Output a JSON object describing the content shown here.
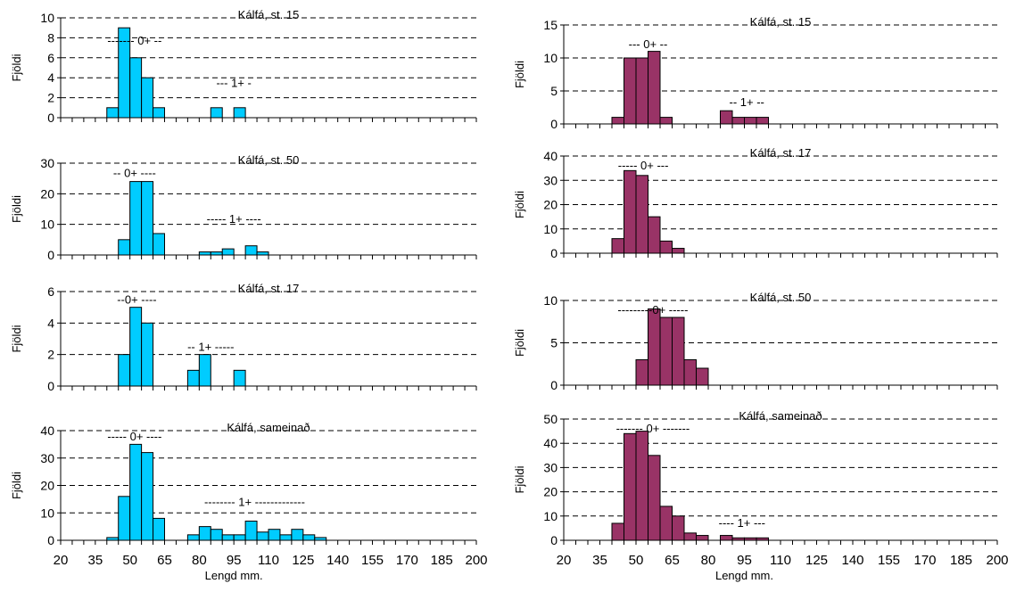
{
  "figure": {
    "x_axis_label": "Lengd mm.",
    "y_axis_label": "Fjöldi",
    "x_ticks": [
      "20",
      "35",
      "50",
      "65",
      "80",
      "95",
      "110",
      "125",
      "140",
      "155",
      "170",
      "185",
      "200"
    ]
  },
  "colors": {
    "left_bars": "#00CCFF",
    "right_bars": "#993366",
    "grid": "#000000"
  },
  "chart_data": [
    {
      "type": "bar",
      "title": "Kálfá, st. 15",
      "column": "left",
      "bin_width": 5,
      "x_range": [
        20,
        200
      ],
      "ylim": [
        0,
        10
      ],
      "yticks": [
        0,
        2,
        4,
        6,
        8,
        10
      ],
      "bins": [
        [
          40,
          1
        ],
        [
          45,
          9
        ],
        [
          50,
          6
        ],
        [
          55,
          4
        ],
        [
          60,
          1
        ],
        [
          85,
          1
        ],
        [
          95,
          1
        ]
      ],
      "annotations": [
        {
          "text": "------- 0+ --",
          "x": 52,
          "y": 7.3
        },
        {
          "text": "--- 1+ -",
          "x": 95,
          "y": 3.1
        }
      ]
    },
    {
      "type": "bar",
      "title": "Kálfá, st. 50",
      "column": "left",
      "bin_width": 5,
      "x_range": [
        20,
        200
      ],
      "ylim": [
        0,
        30
      ],
      "yticks": [
        0,
        10,
        20,
        30
      ],
      "bins": [
        [
          45,
          5
        ],
        [
          50,
          24
        ],
        [
          55,
          24
        ],
        [
          60,
          7
        ],
        [
          80,
          1
        ],
        [
          85,
          1
        ],
        [
          90,
          2
        ],
        [
          100,
          3
        ],
        [
          105,
          1
        ]
      ],
      "annotations": [
        {
          "text": "-- 0+ ----",
          "x": 52,
          "y": 25.5
        },
        {
          "text": "----- 1+ ----",
          "x": 95,
          "y": 10.5
        }
      ]
    },
    {
      "type": "bar",
      "title": "Kálfá, st. 17",
      "column": "left",
      "bin_width": 5,
      "x_range": [
        20,
        200
      ],
      "ylim": [
        0,
        6
      ],
      "yticks": [
        0,
        2,
        4,
        6
      ],
      "bins": [
        [
          45,
          2
        ],
        [
          50,
          5
        ],
        [
          55,
          4
        ],
        [
          75,
          1
        ],
        [
          80,
          2
        ],
        [
          95,
          1
        ]
      ],
      "annotations": [
        {
          "text": "--0+ ----",
          "x": 53,
          "y": 5.25
        },
        {
          "text": "-- 1+ -----",
          "x": 85,
          "y": 2.25
        }
      ]
    },
    {
      "type": "bar",
      "title": "Kálfá, sameinað",
      "column": "left",
      "bin_width": 5,
      "x_range": [
        20,
        200
      ],
      "ylim": [
        0,
        40
      ],
      "yticks": [
        0,
        10,
        20,
        30,
        40
      ],
      "bins": [
        [
          40,
          1
        ],
        [
          45,
          16
        ],
        [
          50,
          35
        ],
        [
          55,
          32
        ],
        [
          60,
          8
        ],
        [
          75,
          2
        ],
        [
          80,
          5
        ],
        [
          85,
          4
        ],
        [
          90,
          2
        ],
        [
          95,
          2
        ],
        [
          100,
          7
        ],
        [
          105,
          3
        ],
        [
          110,
          4
        ],
        [
          115,
          2
        ],
        [
          120,
          4
        ],
        [
          125,
          2
        ],
        [
          130,
          1
        ]
      ],
      "annotations": [
        {
          "text": "----- 0+ ----",
          "x": 52,
          "y": 36.5
        },
        {
          "text": "-------- 1+ -------------",
          "x": 104,
          "y": 12.5
        }
      ]
    },
    {
      "type": "bar",
      "title": "Kálfá, st. 15",
      "column": "right",
      "bin_width": 5,
      "x_range": [
        20,
        200
      ],
      "ylim": [
        0,
        15
      ],
      "yticks": [
        0,
        5,
        10,
        15
      ],
      "bins": [
        [
          40,
          1
        ],
        [
          45,
          10
        ],
        [
          50,
          10
        ],
        [
          55,
          11
        ],
        [
          60,
          1
        ],
        [
          85,
          2
        ],
        [
          90,
          1
        ],
        [
          95,
          1
        ],
        [
          100,
          1
        ]
      ],
      "annotations": [
        {
          "text": "--- 0+ --",
          "x": 55,
          "y": 11.5
        },
        {
          "text": "-- 1+ --",
          "x": 96,
          "y": 2.7
        }
      ]
    },
    {
      "type": "bar",
      "title": "Kálfá, st. 17",
      "column": "right",
      "bin_width": 5,
      "x_range": [
        20,
        200
      ],
      "ylim": [
        0,
        40
      ],
      "yticks": [
        0,
        10,
        20,
        30,
        40
      ],
      "bins": [
        [
          40,
          6
        ],
        [
          45,
          34
        ],
        [
          50,
          32
        ],
        [
          55,
          15
        ],
        [
          60,
          5
        ],
        [
          65,
          2
        ]
      ],
      "annotations": [
        {
          "text": "----- 0+ ---",
          "x": 53,
          "y": 34.5
        }
      ]
    },
    {
      "type": "bar",
      "title": "Kálfá,  st. 50",
      "column": "right",
      "bin_width": 5,
      "x_range": [
        20,
        200
      ],
      "ylim": [
        0,
        10
      ],
      "yticks": [
        0,
        5,
        10
      ],
      "bins": [
        [
          50,
          3
        ],
        [
          55,
          9
        ],
        [
          60,
          8
        ],
        [
          65,
          8
        ],
        [
          70,
          3
        ],
        [
          75,
          2
        ]
      ],
      "annotations": [
        {
          "text": "---------0+ -----",
          "x": 57,
          "y": 8.4
        }
      ]
    },
    {
      "type": "bar",
      "title": "Kálfá, sameinað",
      "column": "right",
      "bin_width": 5,
      "x_range": [
        20,
        200
      ],
      "ylim": [
        0,
        50
      ],
      "yticks": [
        0,
        10,
        20,
        30,
        40,
        50
      ],
      "bins": [
        [
          40,
          7
        ],
        [
          45,
          44
        ],
        [
          50,
          45
        ],
        [
          55,
          35
        ],
        [
          60,
          14
        ],
        [
          65,
          10
        ],
        [
          70,
          3
        ],
        [
          75,
          2
        ],
        [
          85,
          2
        ],
        [
          90,
          1
        ],
        [
          95,
          1
        ],
        [
          100,
          1
        ]
      ],
      "annotations": [
        {
          "text": "------- 0+ -------",
          "x": 57,
          "y": 44.5
        },
        {
          "text": "---- 1+ ---",
          "x": 94,
          "y": 5.5
        }
      ]
    }
  ]
}
